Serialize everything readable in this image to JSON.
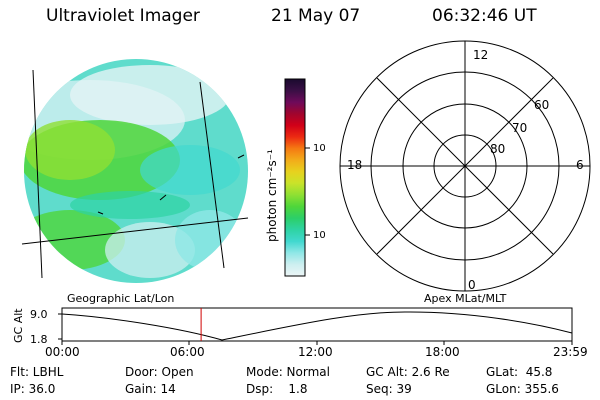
{
  "header": {
    "instrument": "Ultraviolet Imager",
    "date": "21 May 07",
    "time": "06:32:46 UT"
  },
  "colorbar": {
    "label": "photon cm⁻²s⁻¹",
    "ticks": [
      "100",
      "10"
    ],
    "scale": "log",
    "colors": [
      "#1a0a2e",
      "#3a0f45",
      "#6e0a5a",
      "#a0052e",
      "#d10018",
      "#ec2a12",
      "#f57a12",
      "#f2ac1a",
      "#e7d21e",
      "#c9e32a",
      "#8fe033",
      "#4fd63a",
      "#2ccf68",
      "#2ed3a3",
      "#41d8cf",
      "#8fe7e6",
      "#cdeff0",
      "#ecf5f6"
    ]
  },
  "polar": {
    "mlt_labels": {
      "top": "12",
      "left": "18",
      "right": "6",
      "bottom": "0"
    },
    "lat_labels": [
      "60",
      "70",
      "80"
    ]
  },
  "panels": {
    "left_label": "Geographic Lat/Lon",
    "right_label": "Apex MLat/MLT"
  },
  "orbit": {
    "y_axis_label": "GC Alt",
    "y_ticks": [
      "9.0",
      "1.8"
    ],
    "x_ticks": [
      "00:00",
      "06:00",
      "12:00",
      "18:00",
      "23:59"
    ],
    "current_time_marker_fraction": 0.2727
  },
  "info": {
    "flt": "Flt: LBHL",
    "ip": "IP: 36.0",
    "door": "Door: Open",
    "gain": "Gain: 14",
    "mode": "Mode: Normal",
    "dsp": "Dsp:    1.8",
    "gcalt": "GC Alt: 2.6 Re",
    "seq": "Seq: 39",
    "glat": "GLat:  45.8",
    "glon": "GLon: 355.6"
  }
}
